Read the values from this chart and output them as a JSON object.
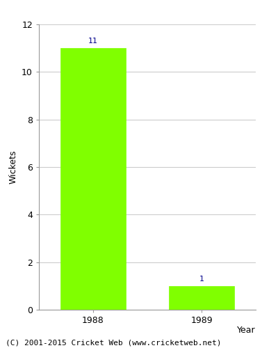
{
  "categories": [
    "1988",
    "1989"
  ],
  "values": [
    11,
    1
  ],
  "bar_color": "#80ff00",
  "title": "",
  "xlabel": "Year",
  "ylabel": "Wickets",
  "ylim": [
    0,
    12
  ],
  "yticks": [
    0,
    2,
    4,
    6,
    8,
    10,
    12
  ],
  "label_color": "#00008b",
  "label_fontsize": 8,
  "axis_label_fontsize": 9,
  "tick_fontsize": 9,
  "footer_text": "(C) 2001-2015 Cricket Web (www.cricketweb.net)",
  "footer_fontsize": 8,
  "background_color": "#ffffff",
  "grid_color": "#cccccc",
  "spine_color": "#999999"
}
